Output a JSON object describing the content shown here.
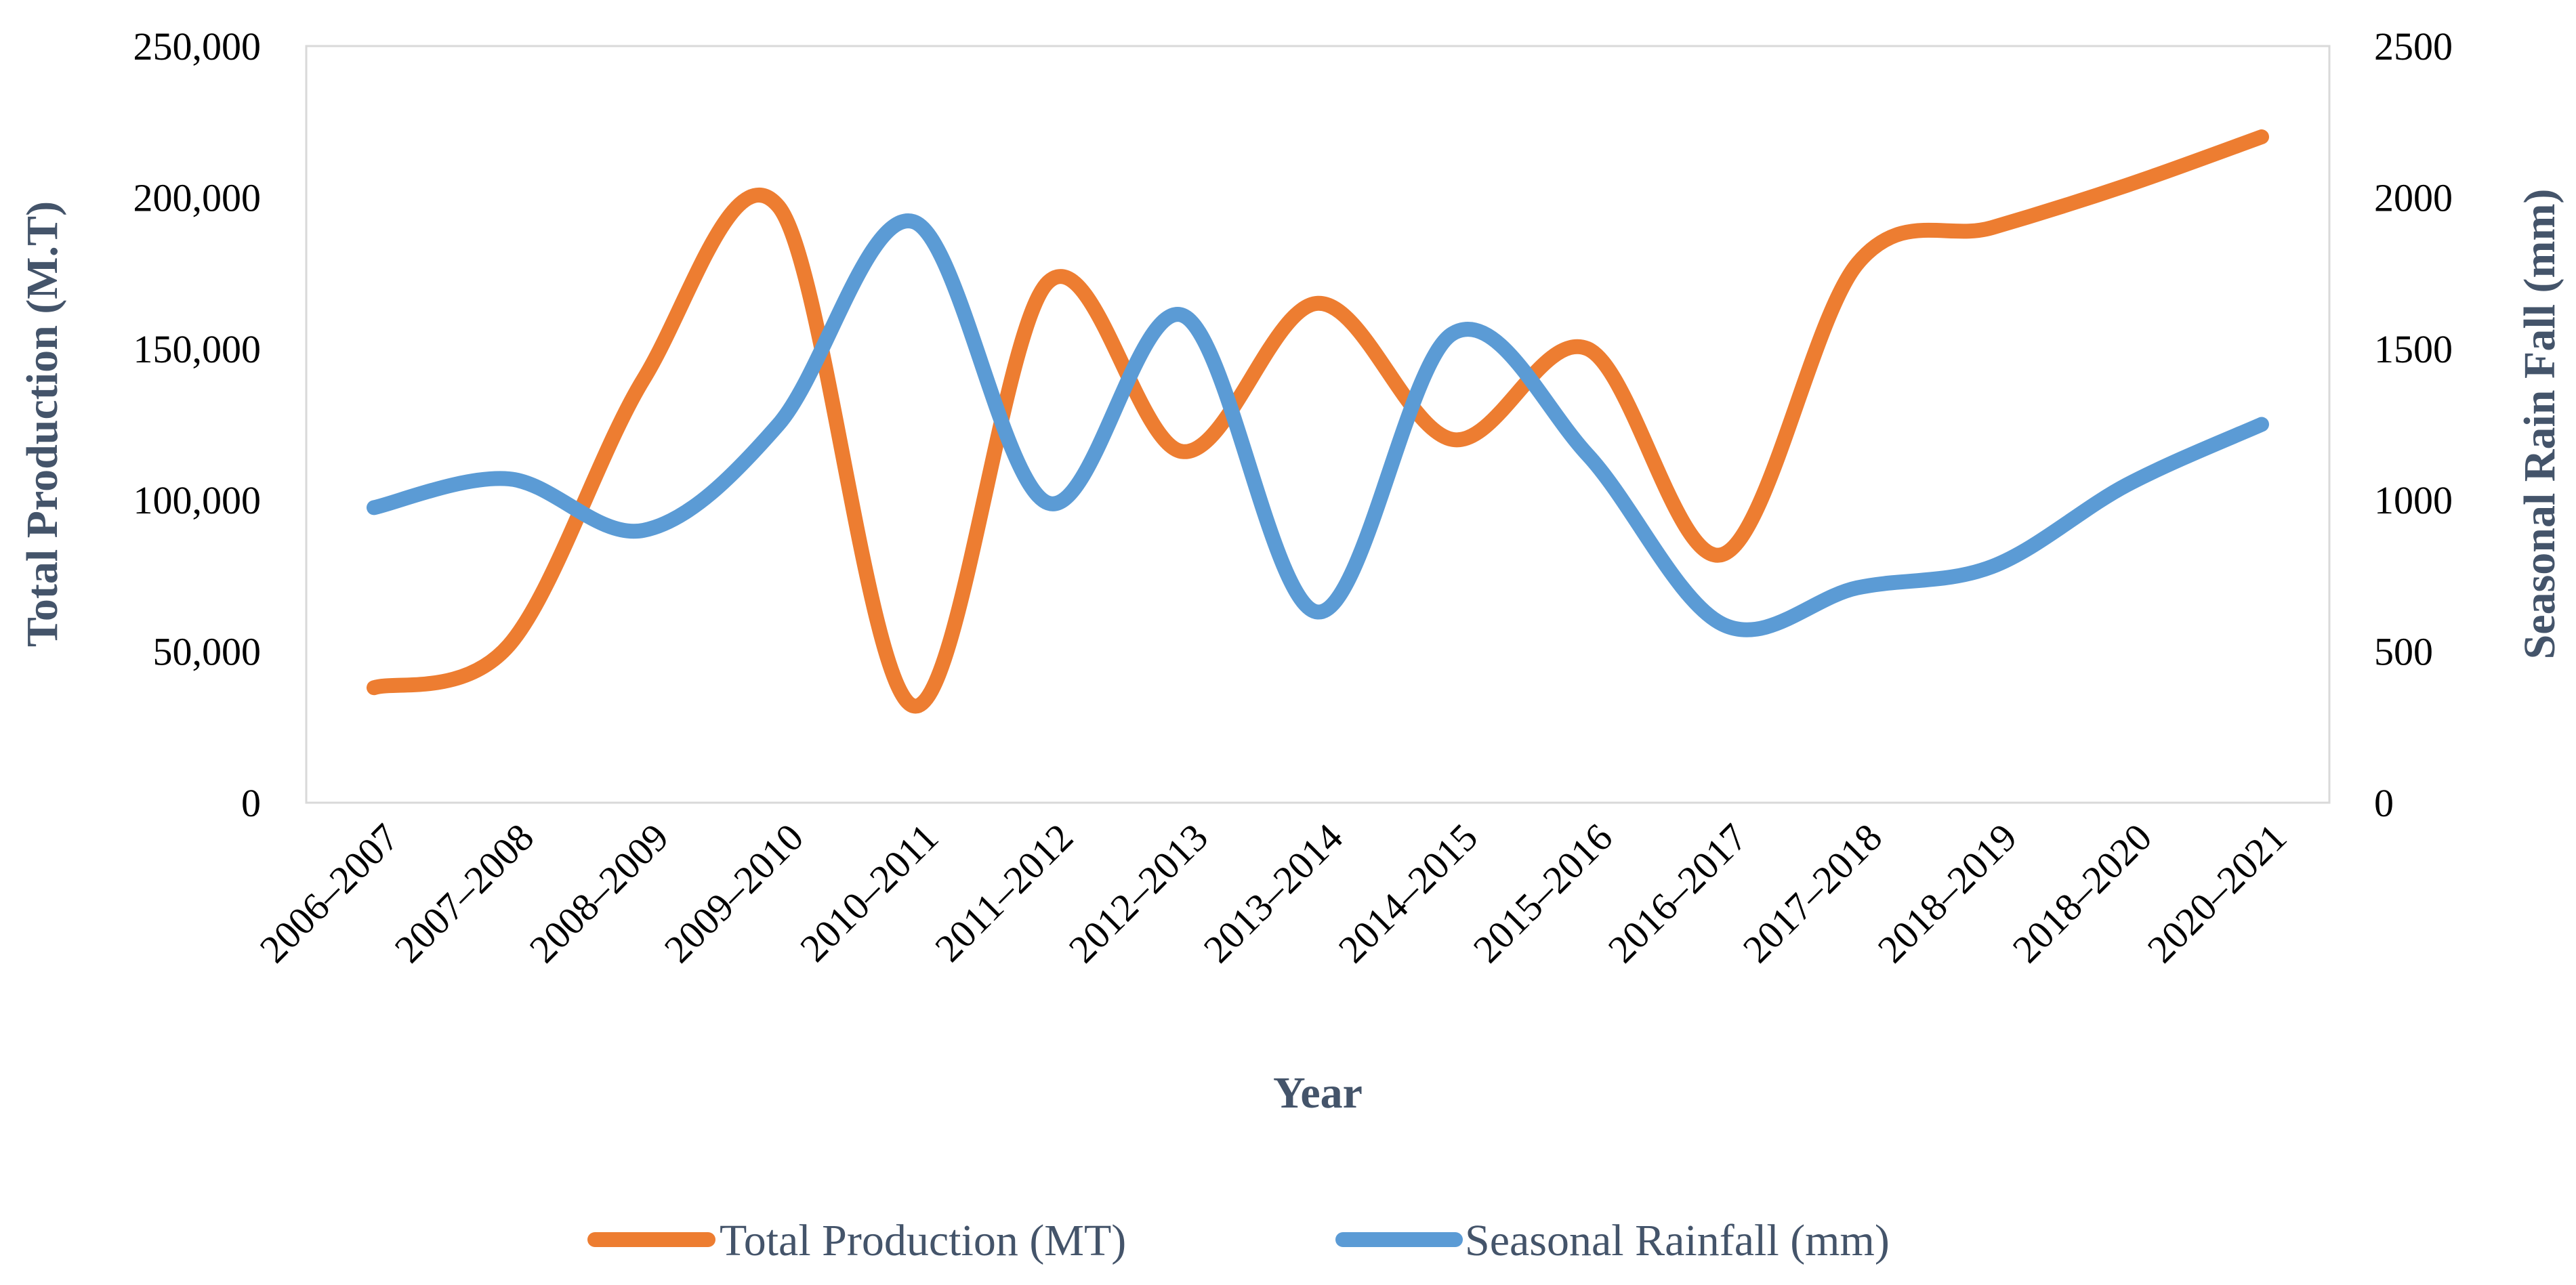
{
  "chart_data": {
    "type": "line",
    "categories": [
      "2006–2007",
      "2007–2008",
      "2008–2009",
      "2009–2010",
      "2010–2011",
      "2011–2012",
      "2012–2013",
      "2013–2014",
      "2014–2015",
      "2015–2016",
      "2016–2017",
      "2017–2018",
      "2018–2019",
      "2018–2020",
      "2020–2021"
    ],
    "series": [
      {
        "name": "Total Production (MT)",
        "axis": "left",
        "color": "#ed7d31",
        "values": [
          38000,
          52000,
          140000,
          197000,
          32000,
          172000,
          116000,
          165000,
          120000,
          150000,
          82000,
          178000,
          190000,
          204000,
          220000
        ]
      },
      {
        "name": "Seasonal Rainfall (mm)",
        "axis": "right",
        "color": "#5b9bd5",
        "values": [
          975,
          1070,
          900,
          1250,
          1920,
          990,
          1610,
          630,
          1550,
          1150,
          590,
          710,
          780,
          1050,
          1250
        ]
      }
    ],
    "xlabel": "Year",
    "ylabel_left": "Total Production (M.T)",
    "ylabel_right": "Seasonal Rain Fall (mm)",
    "ylim_left": [
      0,
      250000
    ],
    "ylim_right": [
      0,
      2500
    ],
    "yticks_left": [
      "0",
      "50,000",
      "100,000",
      "150,000",
      "200,000",
      "250,000"
    ],
    "yticks_right": [
      "0",
      "500",
      "1000",
      "1500",
      "2000",
      "2500"
    ],
    "grid": false,
    "legend": "bottom-center"
  }
}
